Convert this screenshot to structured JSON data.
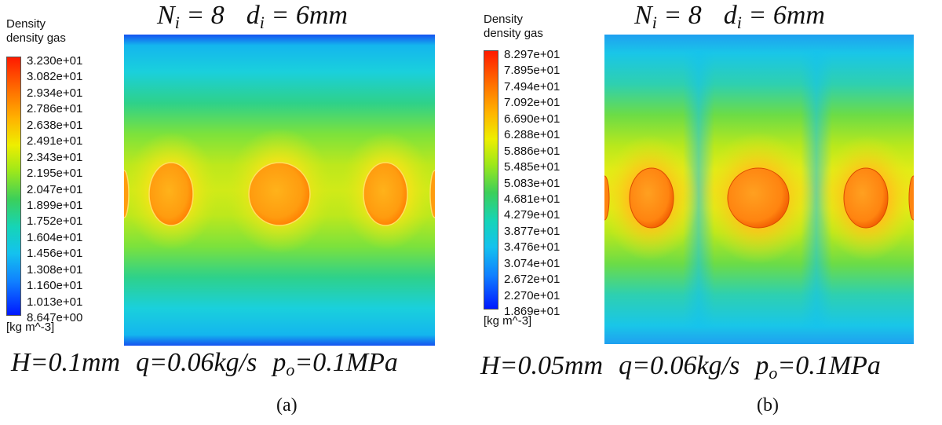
{
  "panels": [
    {
      "label": "(a)",
      "legend": {
        "title_line1": "Density",
        "title_line2": "density gas",
        "ticks": [
          "3.230e+01",
          "3.082e+01",
          "2.934e+01",
          "2.786e+01",
          "2.638e+01",
          "2.491e+01",
          "2.343e+01",
          "2.195e+01",
          "2.047e+01",
          "1.899e+01",
          "1.752e+01",
          "1.604e+01",
          "1.456e+01",
          "1.308e+01",
          "1.160e+01",
          "1.013e+01",
          "8.647e+00"
        ],
        "unit": "[kg m^-3]"
      },
      "top_caption": {
        "n_symbol": "N",
        "n_sub": "i",
        "n_value": " = 8",
        "d_symbol": "d",
        "d_sub": "i",
        "d_value": " = 6mm"
      },
      "bottom_caption": {
        "h": "H=0.1mm",
        "q": "q=0.06kg/s",
        "p_symbol": "p",
        "p_sub": "o",
        "p_value": "=0.1MPa"
      }
    },
    {
      "label": "(b)",
      "legend": {
        "title_line1": "Density",
        "title_line2": "density gas",
        "ticks": [
          "8.297e+01",
          "7.895e+01",
          "7.494e+01",
          "7.092e+01",
          "6.690e+01",
          "6.288e+01",
          "5.886e+01",
          "5.485e+01",
          "5.083e+01",
          "4.681e+01",
          "4.279e+01",
          "3.877e+01",
          "3.476e+01",
          "3.074e+01",
          "2.672e+01",
          "2.270e+01",
          "1.869e+01"
        ],
        "unit": "[kg m^-3]"
      },
      "top_caption": {
        "n_symbol": "N",
        "n_sub": "i",
        "n_value": " = 8",
        "d_symbol": "d",
        "d_sub": "i",
        "d_value": " = 6mm"
      },
      "bottom_caption": {
        "h": "H=0.05mm",
        "q": "q=0.06kg/s",
        "p_symbol": "p",
        "p_sub": "o",
        "p_value": "=0.1MPa"
      }
    }
  ],
  "colormap": [
    "#ff1a00",
    "#ff6a00",
    "#ffb400",
    "#eeee00",
    "#9ee81a",
    "#3ccf5a",
    "#15d4b8",
    "#14c2ee",
    "#1080ff",
    "#0018ff"
  ]
}
